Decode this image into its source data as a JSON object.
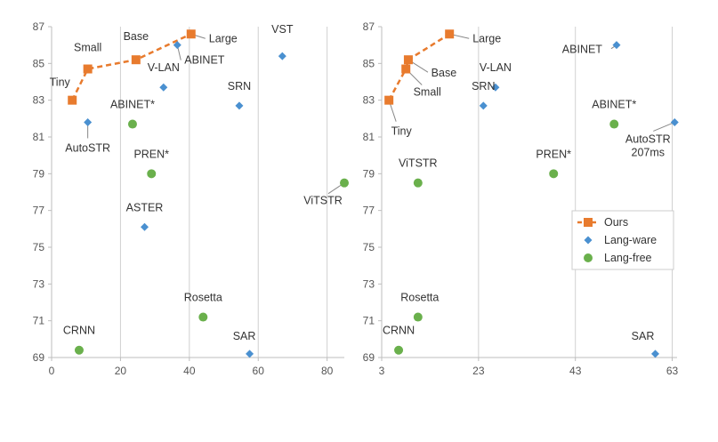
{
  "chart_data": [
    {
      "type": "scatter",
      "title": "",
      "xlabel": "",
      "ylabel": "",
      "xlim": [
        0,
        85
      ],
      "ylim": [
        69,
        87
      ],
      "x_ticks": [
        "0",
        "20",
        "40",
        "60",
        "80"
      ],
      "y_ticks": [
        "69",
        "71",
        "73",
        "75",
        "77",
        "79",
        "81",
        "83",
        "85",
        "87"
      ],
      "grid": "vertical",
      "legend": null,
      "series": [
        {
          "name": "Ours",
          "marker": "square",
          "line": "dashed",
          "color": "#e87b2e",
          "points": [
            {
              "label": "Tiny",
              "x": 6,
              "y": 83.0
            },
            {
              "label": "Small",
              "x": 10.5,
              "y": 84.7
            },
            {
              "label": "Base",
              "x": 24.5,
              "y": 85.2
            },
            {
              "label": "Large",
              "x": 40.5,
              "y": 86.6
            }
          ]
        },
        {
          "name": "Lang-ware",
          "marker": "diamond",
          "color": "#4a90d0",
          "points": [
            {
              "label": "AutoSTR",
              "x": 10.5,
              "y": 81.8
            },
            {
              "label": "ABINET",
              "x": 36.5,
              "y": 86.0
            },
            {
              "label": "V-LAN",
              "x": 32.5,
              "y": 83.7
            },
            {
              "label": "VST",
              "x": 67,
              "y": 85.4
            },
            {
              "label": "SRN",
              "x": 54.5,
              "y": 82.7
            },
            {
              "label": "ASTER",
              "x": 27,
              "y": 76.1
            },
            {
              "label": "SAR",
              "x": 57.5,
              "y": 69.2
            }
          ]
        },
        {
          "name": "Lang-free",
          "marker": "circle",
          "color": "#6ab04c",
          "points": [
            {
              "label": "ABINET*",
              "x": 23.5,
              "y": 81.7
            },
            {
              "label": "PREN*",
              "x": 29,
              "y": 79.0
            },
            {
              "label": "ViTSTR",
              "x": 85,
              "y": 78.5
            },
            {
              "label": "Rosetta",
              "x": 44,
              "y": 71.2
            },
            {
              "label": "CRNN",
              "x": 8,
              "y": 69.4
            }
          ]
        }
      ]
    },
    {
      "type": "scatter",
      "title": "",
      "xlabel": "",
      "ylabel": "",
      "xlim": [
        3,
        64
      ],
      "ylim": [
        69,
        87
      ],
      "x_ticks": [
        "3",
        "23",
        "43",
        "63"
      ],
      "y_ticks": [
        "69",
        "71",
        "73",
        "75",
        "77",
        "79",
        "81",
        "83",
        "85",
        "87"
      ],
      "grid": "vertical",
      "legend": "right",
      "series": [
        {
          "name": "Ours",
          "marker": "square",
          "line": "dashed",
          "color": "#e87b2e",
          "points": [
            {
              "label": "Tiny",
              "x": 4.5,
              "y": 83.0
            },
            {
              "label": "Small",
              "x": 8,
              "y": 84.7
            },
            {
              "label": "Base",
              "x": 8.5,
              "y": 85.2
            },
            {
              "label": "Large",
              "x": 17,
              "y": 86.6
            }
          ]
        },
        {
          "name": "Lang-ware",
          "marker": "diamond",
          "color": "#4a90d0",
          "points": [
            {
              "label": "ABINET",
              "x": 51.5,
              "y": 86.0
            },
            {
              "label": "V-LAN",
              "x": 26.5,
              "y": 83.7
            },
            {
              "label": "SRN",
              "x": 24,
              "y": 82.7
            },
            {
              "label": "AutoSTR 207ms",
              "x": 63.5,
              "y": 81.8
            },
            {
              "label": "SAR",
              "x": 59.5,
              "y": 69.2
            }
          ]
        },
        {
          "name": "Lang-free",
          "marker": "circle",
          "color": "#6ab04c",
          "points": [
            {
              "label": "ABINET*",
              "x": 51,
              "y": 81.7
            },
            {
              "label": "PREN*",
              "x": 38.5,
              "y": 79.0
            },
            {
              "label": "ViTSTR",
              "x": 10.5,
              "y": 78.5
            },
            {
              "label": "Rosetta",
              "x": 10.5,
              "y": 71.2
            },
            {
              "label": "CRNN",
              "x": 6.5,
              "y": 69.4
            }
          ]
        }
      ]
    }
  ]
}
